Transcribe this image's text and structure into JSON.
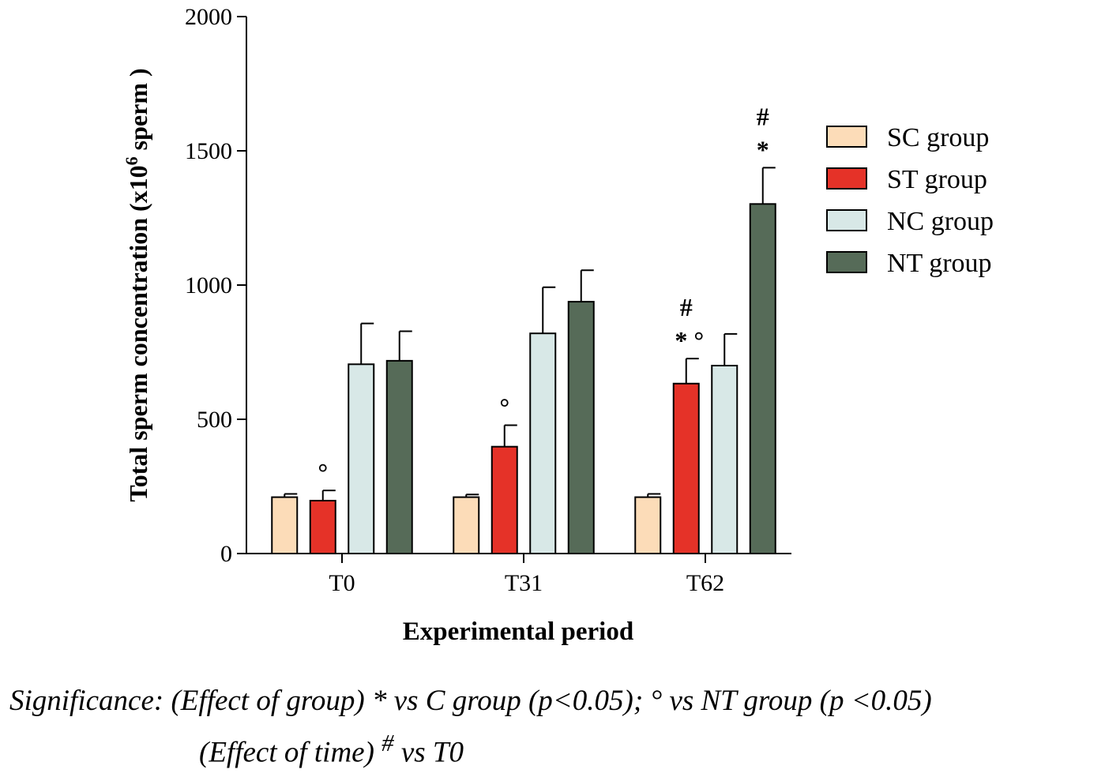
{
  "chart_data": {
    "type": "bar",
    "title": "",
    "xlabel": "Experimental period",
    "ylabel": {
      "prefix": "Total sperm concentration (x10",
      "sup": "6",
      "suffix": " sperm )"
    },
    "ylim": [
      0,
      2000
    ],
    "yticks": [
      "0",
      "500",
      "1000",
      "1500",
      "2000"
    ],
    "categories": [
      "T0",
      "T31",
      "T62"
    ],
    "legend_position": "right",
    "series": [
      {
        "name": "SC group",
        "color": "#fcdcb8",
        "values": [
          210,
          210,
          210
        ],
        "errors": [
          12,
          10,
          12
        ],
        "annotations": [
          "",
          "",
          ""
        ]
      },
      {
        "name": "ST group",
        "color": "#e53228",
        "values": [
          197,
          398,
          633
        ],
        "errors": [
          38,
          80,
          93
        ],
        "annotations": [
          "°",
          "°",
          "* °|#"
        ]
      },
      {
        "name": "NC group",
        "color": "#d8e8e7",
        "values": [
          705,
          820,
          700
        ],
        "errors": [
          152,
          172,
          118
        ],
        "annotations": [
          "",
          "",
          ""
        ]
      },
      {
        "name": "NT group",
        "color": "#566b58",
        "values": [
          718,
          938,
          1302
        ],
        "errors": [
          110,
          117,
          135
        ],
        "annotations": [
          "",
          "",
          "*|#"
        ]
      }
    ]
  },
  "footnote": {
    "line1": "Significance: (Effect of group) * vs C group (p<0.05); ° vs NT group (p <0.05)",
    "line2_prefix": "(Effect of time) ",
    "line2_sup": "#",
    "line2_suffix": " vs T0"
  }
}
